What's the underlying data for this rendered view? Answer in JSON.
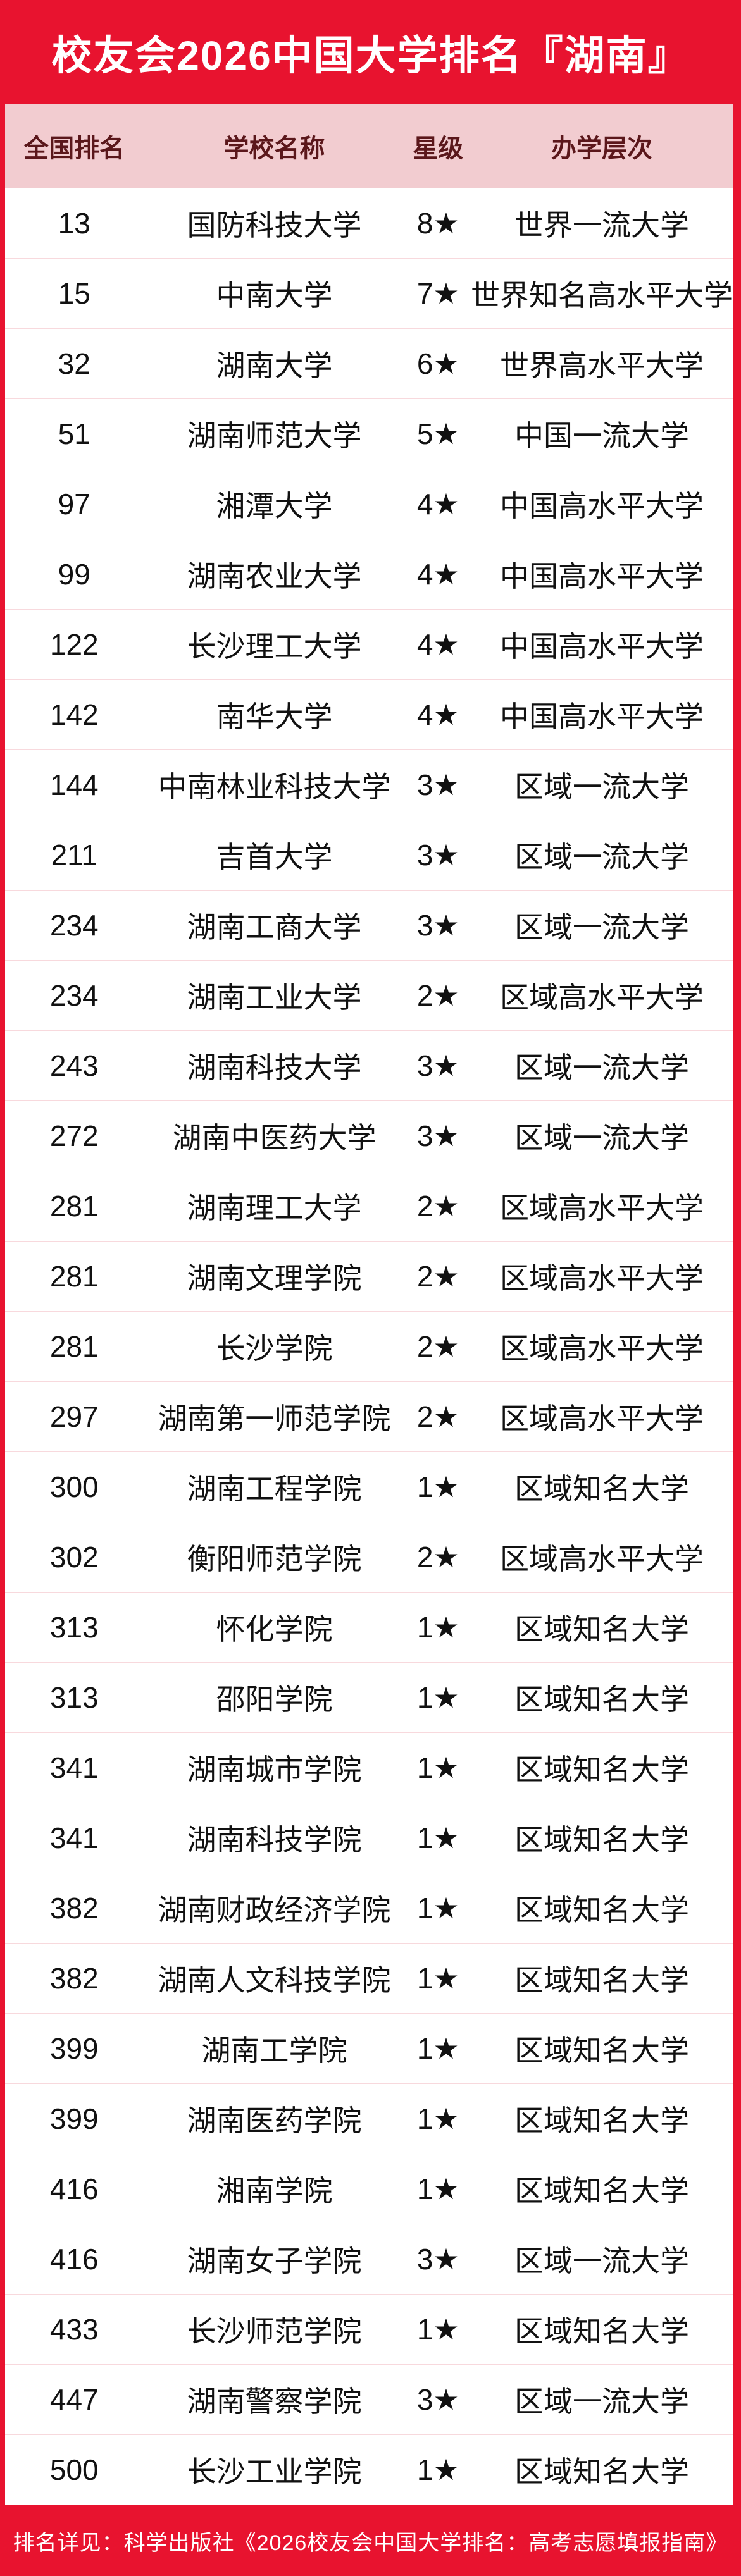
{
  "banner": {
    "title": "校友会2026中国大学排名『湖南』"
  },
  "footer": {
    "text": "排名详见：科学出版社《2026校友会中国大学排名：高考志愿填报指南》"
  },
  "colors": {
    "accent_red": "#e8132f",
    "header_bg": "#f2ccd0",
    "header_text": "#5b171b",
    "row_text": "#111111",
    "separator": "#f8d9dd",
    "title_text": "#ffffff"
  },
  "chart_data": {
    "type": "table",
    "title": "校友会2026中国大学排名『湖南』",
    "columns": [
      "全国排名",
      "学校名称",
      "星级",
      "办学层次"
    ],
    "rows": [
      {
        "rank": "13",
        "name": "国防科技大学",
        "stars": "8★",
        "level": "世界一流大学"
      },
      {
        "rank": "15",
        "name": "中南大学",
        "stars": "7★",
        "level": "世界知名高水平大学"
      },
      {
        "rank": "32",
        "name": "湖南大学",
        "stars": "6★",
        "level": "世界高水平大学"
      },
      {
        "rank": "51",
        "name": "湖南师范大学",
        "stars": "5★",
        "level": "中国一流大学"
      },
      {
        "rank": "97",
        "name": "湘潭大学",
        "stars": "4★",
        "level": "中国高水平大学"
      },
      {
        "rank": "99",
        "name": "湖南农业大学",
        "stars": "4★",
        "level": "中国高水平大学"
      },
      {
        "rank": "122",
        "name": "长沙理工大学",
        "stars": "4★",
        "level": "中国高水平大学"
      },
      {
        "rank": "142",
        "name": "南华大学",
        "stars": "4★",
        "level": "中国高水平大学"
      },
      {
        "rank": "144",
        "name": "中南林业科技大学",
        "stars": "3★",
        "level": "区域一流大学"
      },
      {
        "rank": "211",
        "name": "吉首大学",
        "stars": "3★",
        "level": "区域一流大学"
      },
      {
        "rank": "234",
        "name": "湖南工商大学",
        "stars": "3★",
        "level": "区域一流大学"
      },
      {
        "rank": "234",
        "name": "湖南工业大学",
        "stars": "2★",
        "level": "区域高水平大学"
      },
      {
        "rank": "243",
        "name": "湖南科技大学",
        "stars": "3★",
        "level": "区域一流大学"
      },
      {
        "rank": "272",
        "name": "湖南中医药大学",
        "stars": "3★",
        "level": "区域一流大学"
      },
      {
        "rank": "281",
        "name": "湖南理工大学",
        "stars": "2★",
        "level": "区域高水平大学"
      },
      {
        "rank": "281",
        "name": "湖南文理学院",
        "stars": "2★",
        "level": "区域高水平大学"
      },
      {
        "rank": "281",
        "name": "长沙学院",
        "stars": "2★",
        "level": "区域高水平大学"
      },
      {
        "rank": "297",
        "name": "湖南第一师范学院",
        "stars": "2★",
        "level": "区域高水平大学"
      },
      {
        "rank": "300",
        "name": "湖南工程学院",
        "stars": "1★",
        "level": "区域知名大学"
      },
      {
        "rank": "302",
        "name": "衡阳师范学院",
        "stars": "2★",
        "level": "区域高水平大学"
      },
      {
        "rank": "313",
        "name": "怀化学院",
        "stars": "1★",
        "level": "区域知名大学"
      },
      {
        "rank": "313",
        "name": "邵阳学院",
        "stars": "1★",
        "level": "区域知名大学"
      },
      {
        "rank": "341",
        "name": "湖南城市学院",
        "stars": "1★",
        "level": "区域知名大学"
      },
      {
        "rank": "341",
        "name": "湖南科技学院",
        "stars": "1★",
        "level": "区域知名大学"
      },
      {
        "rank": "382",
        "name": "湖南财政经济学院",
        "stars": "1★",
        "level": "区域知名大学"
      },
      {
        "rank": "382",
        "name": "湖南人文科技学院",
        "stars": "1★",
        "level": "区域知名大学"
      },
      {
        "rank": "399",
        "name": "湖南工学院",
        "stars": "1★",
        "level": "区域知名大学"
      },
      {
        "rank": "399",
        "name": "湖南医药学院",
        "stars": "1★",
        "level": "区域知名大学"
      },
      {
        "rank": "416",
        "name": "湘南学院",
        "stars": "1★",
        "level": "区域知名大学"
      },
      {
        "rank": "416",
        "name": "湖南女子学院",
        "stars": "3★",
        "level": "区域一流大学"
      },
      {
        "rank": "433",
        "name": "长沙师范学院",
        "stars": "1★",
        "level": "区域知名大学"
      },
      {
        "rank": "447",
        "name": "湖南警察学院",
        "stars": "3★",
        "level": "区域一流大学"
      },
      {
        "rank": "500",
        "name": "长沙工业学院",
        "stars": "1★",
        "level": "区域知名大学"
      }
    ]
  }
}
